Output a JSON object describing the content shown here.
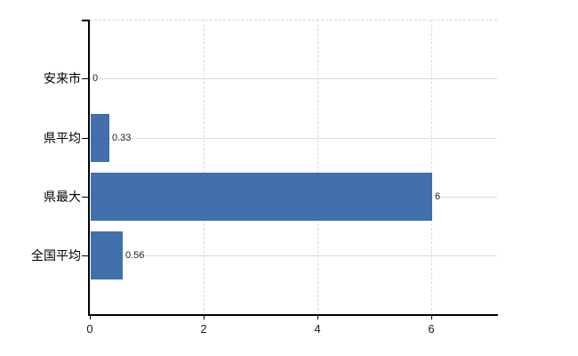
{
  "chart_data": {
    "type": "bar",
    "orientation": "horizontal",
    "title": "",
    "xlabel": "",
    "ylabel": "",
    "categories": [
      "安来市",
      "県平均",
      "県最大",
      "全国平均"
    ],
    "values": [
      0,
      0.33,
      6,
      0.56
    ],
    "value_labels": [
      "0",
      "0.33",
      "6",
      "0.56"
    ],
    "x_tick_labels": [
      "0",
      "2",
      "4",
      "6"
    ],
    "x_tick_values": [
      0,
      2,
      4,
      6
    ],
    "xlim": [
      0,
      7.16
    ],
    "legend": "none",
    "grid": {
      "horizontal": "solid line at each category center",
      "vertical": "dashed line at each nonzero x tick",
      "plot_top_border": "dashed"
    },
    "colors": {
      "background": "#ffffff",
      "bar": "#4170ad",
      "axis": "#000000",
      "h_gridline": "#d5dcd5",
      "v_gridline": "#d9d6de",
      "category_label": "#000000",
      "value_label": "#1a1a1a",
      "tick_label": "#1a1a1a"
    }
  }
}
